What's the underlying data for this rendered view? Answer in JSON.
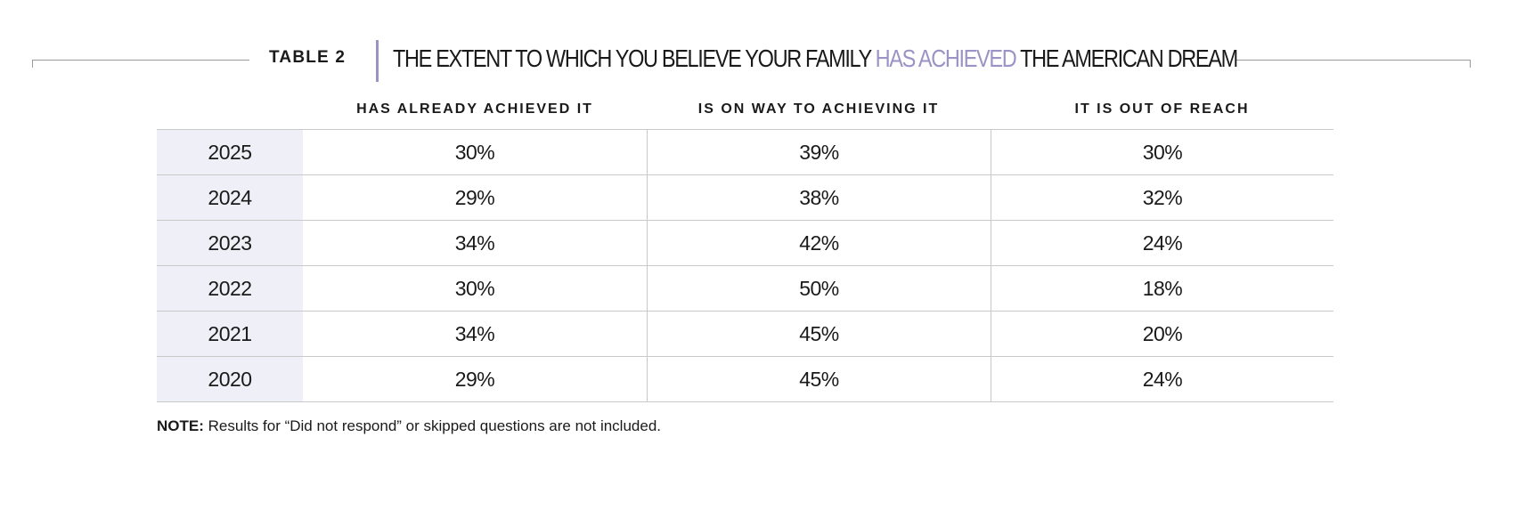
{
  "table": {
    "label": "TABLE 2",
    "title_prefix": "THE EXTENT TO WHICH YOU BELIEVE YOUR FAMILY ",
    "title_highlight": "HAS ACHIEVED",
    "title_suffix": " THE AMERICAN DREAM",
    "highlight_color": "#9b93c6",
    "columns": [
      "HAS ALREADY ACHIEVED IT",
      "IS ON WAY TO ACHIEVING IT",
      "IT IS OUT OF REACH"
    ],
    "rows": [
      {
        "year": "2025",
        "values": [
          "30%",
          "39%",
          "30%"
        ]
      },
      {
        "year": "2024",
        "values": [
          "29%",
          "38%",
          "32%"
        ]
      },
      {
        "year": "2023",
        "values": [
          "34%",
          "42%",
          "24%"
        ]
      },
      {
        "year": "2022",
        "values": [
          "30%",
          "50%",
          "18%"
        ]
      },
      {
        "year": "2021",
        "values": [
          "34%",
          "45%",
          "20%"
        ]
      },
      {
        "year": "2020",
        "values": [
          "29%",
          "45%",
          "24%"
        ]
      }
    ]
  },
  "note": {
    "label": "NOTE:",
    "text": " Results for “Did not respond” or skipped questions are not included."
  }
}
